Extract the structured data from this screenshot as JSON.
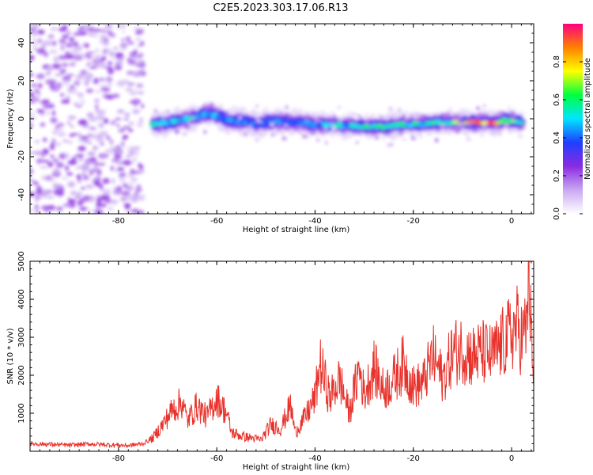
{
  "title": "C2E5.2023.303.17.06.R13",
  "colors": {
    "series": "#e8322b",
    "axis": "#000000",
    "background": "#ffffff"
  },
  "chart_data": [
    {
      "type": "heatmap",
      "xlabel": "Height of straight line (km)",
      "ylabel": "Frequency (Hz)",
      "xlim": [
        -98,
        4.5
      ],
      "ylim": [
        -50,
        50
      ],
      "xticks": [
        -80,
        -60,
        -40,
        -20,
        0
      ],
      "yticks": [
        -40,
        -20,
        0,
        20,
        40
      ],
      "colorbar": {
        "label": "Normalized spectral amplitude",
        "range": [
          0,
          1
        ],
        "ticks": [
          0.0,
          0.2,
          0.4,
          0.6,
          0.8
        ],
        "colormap": [
          "#ffffff",
          "#c9a8f2",
          "#8a2be2",
          "#1f3fff",
          "#00e5ff",
          "#00ff40",
          "#ffff00",
          "#ff8000",
          "#ff0080"
        ]
      },
      "noise_region": {
        "x": [
          -98,
          -75
        ],
        "y": [
          -50,
          50
        ],
        "amplitude": [
          0.05,
          0.25
        ]
      },
      "ridge": [
        {
          "x": -73,
          "freq": -3,
          "amp": 0.55
        },
        {
          "x": -70,
          "freq": -2,
          "amp": 0.5
        },
        {
          "x": -67,
          "freq": -1,
          "amp": 0.5
        },
        {
          "x": -64,
          "freq": 1,
          "amp": 0.55
        },
        {
          "x": -61,
          "freq": 3,
          "amp": 0.5
        },
        {
          "x": -58,
          "freq": -1,
          "amp": 0.45
        },
        {
          "x": -55,
          "freq": -1,
          "amp": 0.45
        },
        {
          "x": -52,
          "freq": -3,
          "amp": 0.4
        },
        {
          "x": -49,
          "freq": -1,
          "amp": 0.45
        },
        {
          "x": -46,
          "freq": -2,
          "amp": 0.45
        },
        {
          "x": -43,
          "freq": -2,
          "amp": 0.45
        },
        {
          "x": -40,
          "freq": -3,
          "amp": 0.45
        },
        {
          "x": -37,
          "freq": -3,
          "amp": 0.5
        },
        {
          "x": -34,
          "freq": -4,
          "amp": 0.5
        },
        {
          "x": -31,
          "freq": -4,
          "amp": 0.5
        },
        {
          "x": -28,
          "freq": -4,
          "amp": 0.55
        },
        {
          "x": -25,
          "freq": -4,
          "amp": 0.55
        },
        {
          "x": -22,
          "freq": -3,
          "amp": 0.55
        },
        {
          "x": -19,
          "freq": -3,
          "amp": 0.55
        },
        {
          "x": -16,
          "freq": -2,
          "amp": 0.6
        },
        {
          "x": -13,
          "freq": -2,
          "amp": 0.6
        },
        {
          "x": -10,
          "freq": -2,
          "amp": 0.85
        },
        {
          "x": -7,
          "freq": -2,
          "amp": 0.9
        },
        {
          "x": -4,
          "freq": -2,
          "amp": 0.9
        },
        {
          "x": -1,
          "freq": -1,
          "amp": 0.7
        },
        {
          "x": 2,
          "freq": -2,
          "amp": 0.6
        }
      ]
    },
    {
      "type": "line",
      "xlabel": "Height of straight line (km)",
      "ylabel": "SNR (10 * v/v)",
      "xlim": [
        -98,
        4.5
      ],
      "ylim": [
        0,
        5000
      ],
      "xticks": [
        -80,
        -60,
        -40,
        -20,
        0
      ],
      "yticks": [
        1000,
        2000,
        3000,
        4000,
        5000
      ],
      "series": [
        {
          "x": [
            -98,
            -94,
            -90,
            -86,
            -82,
            -78,
            -75,
            -73,
            -71,
            -69,
            -67,
            -66,
            -64,
            -62,
            -60,
            -58,
            -57,
            -55,
            -53,
            -51,
            -49,
            -47,
            -45,
            -44,
            -42,
            -40,
            -39,
            -37,
            -35,
            -33,
            -31,
            -30,
            -28,
            -26,
            -24,
            -22,
            -20,
            -18,
            -16,
            -14,
            -12,
            -10,
            -8,
            -6,
            -4,
            -2,
            0,
            1,
            2,
            3,
            3.5,
            4,
            4.5
          ],
          "values": [
            200,
            180,
            160,
            190,
            170,
            150,
            200,
            350,
            700,
            1100,
            1300,
            800,
            1200,
            900,
            1400,
            1000,
            500,
            400,
            350,
            300,
            700,
            600,
            1200,
            500,
            900,
            1400,
            2300,
            1400,
            1900,
            1000,
            2200,
            1500,
            2200,
            1600,
            1900,
            2300,
            1700,
            1800,
            2500,
            1900,
            2600,
            2700,
            2500,
            2600,
            2500,
            2800,
            3100,
            3300,
            3000,
            3200,
            4900,
            3000,
            1500
          ]
        }
      ]
    }
  ]
}
